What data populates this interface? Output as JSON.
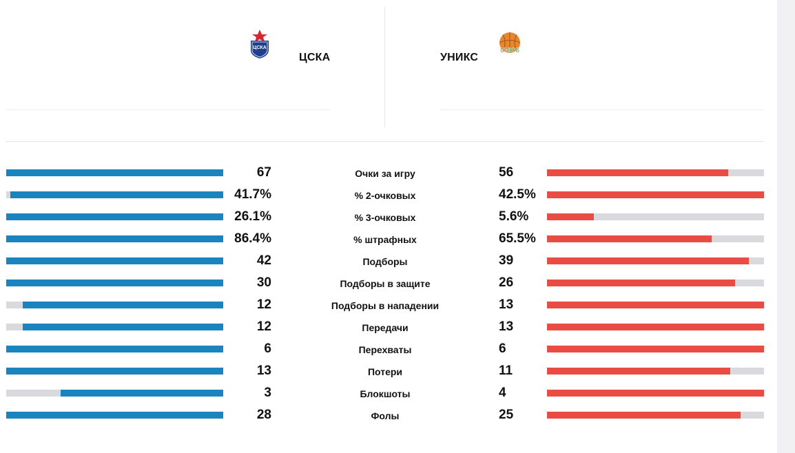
{
  "home": {
    "name": "ЦСКА",
    "logo_text": "ЦСКА",
    "logo_color": "#1e3f8f",
    "accent": "#1a84bf"
  },
  "away": {
    "name": "УНИКС",
    "logo_text": "UNICS",
    "logo_color": "#e8862d",
    "accent": "#e84c43"
  },
  "stats": [
    {
      "label": "Очки за игру",
      "home": "67",
      "away": "56",
      "home_bar": 100,
      "away_bar": 83.6
    },
    {
      "label": "% 2-очковых",
      "home": "41.7%",
      "away": "42.5%",
      "home_bar": 98.1,
      "away_bar": 100
    },
    {
      "label": "% 3-очковых",
      "home": "26.1%",
      "away": "5.6%",
      "home_bar": 100,
      "away_bar": 21.5
    },
    {
      "label": "% штрафных",
      "home": "86.4%",
      "away": "65.5%",
      "home_bar": 100,
      "away_bar": 75.8
    },
    {
      "label": "Подборы",
      "home": "42",
      "away": "39",
      "home_bar": 100,
      "away_bar": 92.9
    },
    {
      "label": "Подборы в защите",
      "home": "30",
      "away": "26",
      "home_bar": 100,
      "away_bar": 86.7
    },
    {
      "label": "Подборы в нападении",
      "home": "12",
      "away": "13",
      "home_bar": 92.3,
      "away_bar": 100
    },
    {
      "label": "Передачи",
      "home": "12",
      "away": "13",
      "home_bar": 92.3,
      "away_bar": 100
    },
    {
      "label": "Перехваты",
      "home": "6",
      "away": "6",
      "home_bar": 100,
      "away_bar": 100
    },
    {
      "label": "Потери",
      "home": "13",
      "away": "11",
      "home_bar": 100,
      "away_bar": 84.6
    },
    {
      "label": "Блокшоты",
      "home": "3",
      "away": "4",
      "home_bar": 75,
      "away_bar": 100
    },
    {
      "label": "Фолы",
      "home": "28",
      "away": "25",
      "home_bar": 100,
      "away_bar": 89.3
    }
  ]
}
